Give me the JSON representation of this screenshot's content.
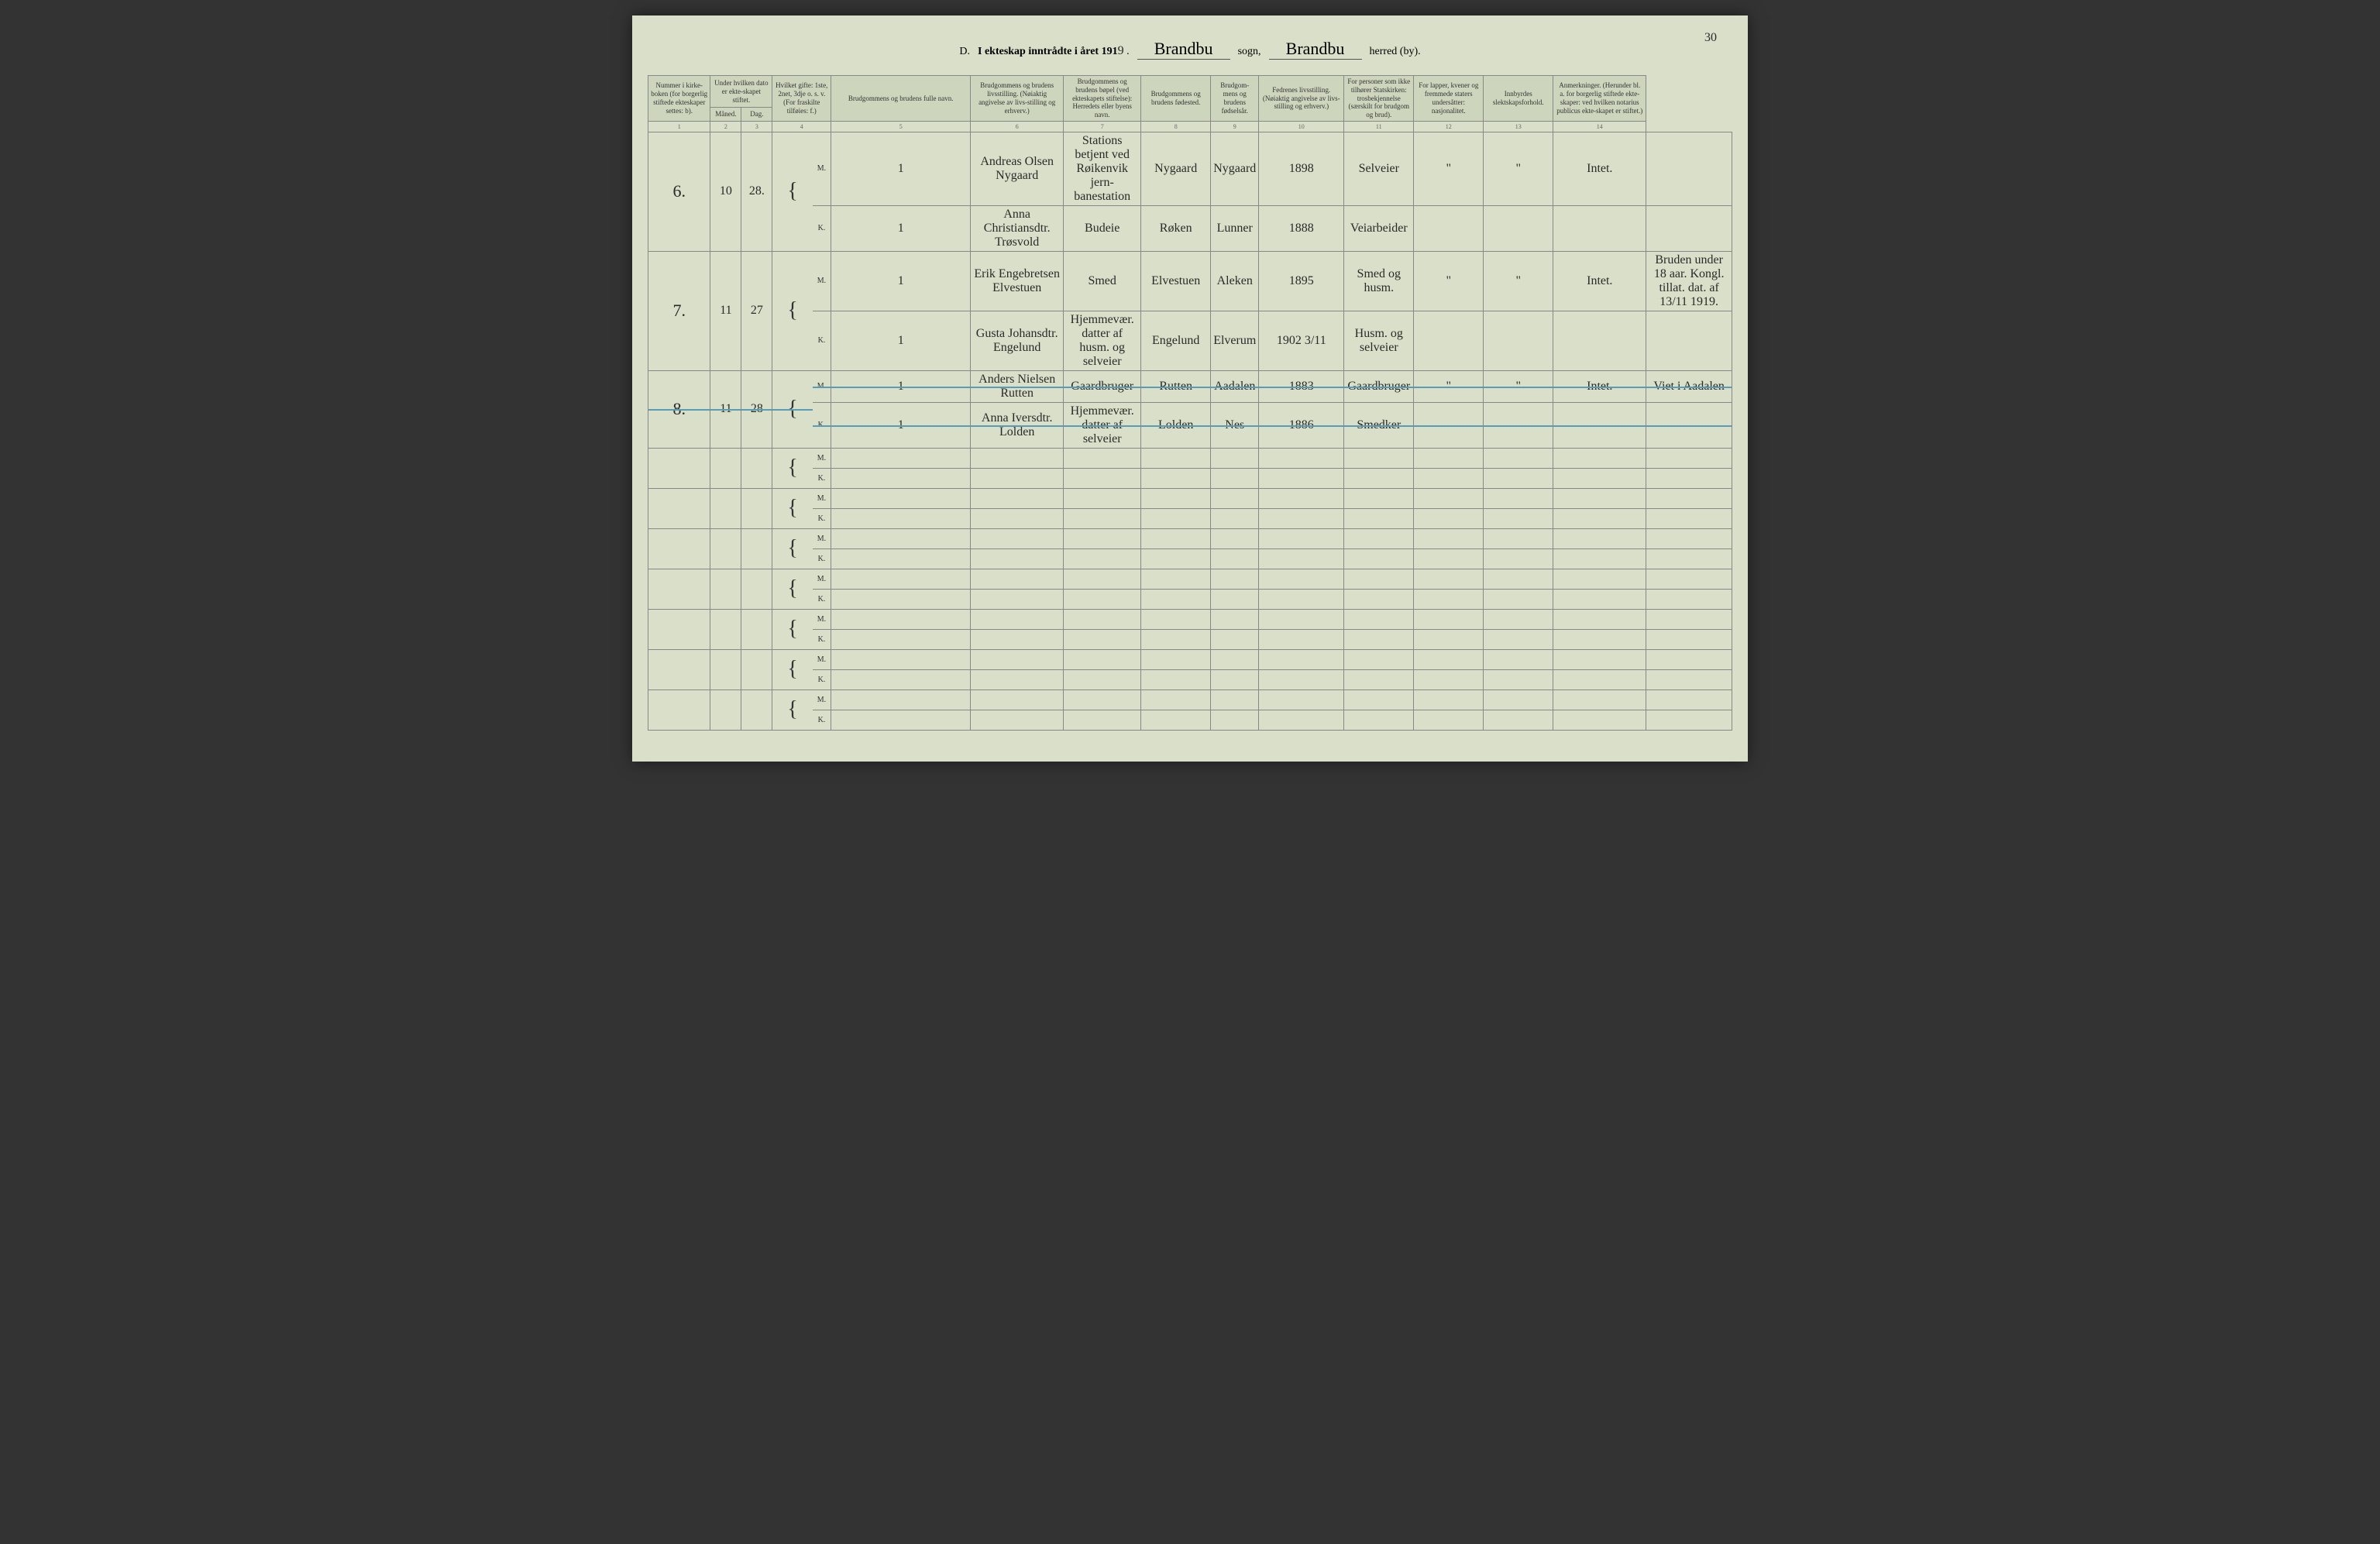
{
  "header": {
    "section_letter": "D.",
    "title_prefix": "I ekteskap inntrådte i året 191",
    "year_suffix": "9",
    "sogn_label": "sogn,",
    "sogn_value": "Brandbu",
    "herred_label": "herred (by).",
    "herred_value": "Brandbu",
    "page_number": "30"
  },
  "columns": [
    {
      "num": "1",
      "label": "Nummer i kirke-boken (for borgerlig stiftede ekteskaper settes: b)."
    },
    {
      "num": "2",
      "label": "Måned."
    },
    {
      "num": "3",
      "label": "Dag."
    },
    {
      "num": "",
      "label_top": "Under hvilken dato er ekte-skapet stiftet."
    },
    {
      "num": "4",
      "label": "Hvilket gifte: 1ste, 2net, 3dje o. s. v. (For fraskilte tilføies: f.)"
    },
    {
      "num": "5",
      "label": "Brudgommens og brudens fulle navn."
    },
    {
      "num": "6",
      "label": "Brudgommens og brudens livsstilling. (Nøiaktig angivelse av livs-stilling og erhverv.)"
    },
    {
      "num": "7",
      "label": "Brudgommens og brudens bøpel (ved ekteskapets stiftelse): Herredets eller byens navn."
    },
    {
      "num": "8",
      "label": "Brudgommens og brudens fødested."
    },
    {
      "num": "9",
      "label": "Brudgom-mens og brudens fødselsår."
    },
    {
      "num": "10",
      "label": "Fedrenes livsstilling. (Nøiaktig angivelse av livs-stilling og erhverv.)"
    },
    {
      "num": "11",
      "label": "For personer som ikke tilhører Statskirken: trosbekjennelse (særskilt for brudgom og brud)."
    },
    {
      "num": "12",
      "label": "For lapper, kvener og fremmede staters undersåtter: nasjonalitet."
    },
    {
      "num": "13",
      "label": "Innbyrdes slektskapsforhold."
    },
    {
      "num": "14",
      "label": "Anmerkninger. (Herunder bl. a. for borgerlig stiftede ekte-skaper: ved hvilken notarius publicus ekte-skapet er stiftet.)"
    }
  ],
  "entries": [
    {
      "num": "6.",
      "month": "10",
      "day": "28.",
      "m": {
        "gifte": "1",
        "name": "Andreas Olsen Nygaard",
        "livs": "Stations betjent ved Røikenvik jern-banestation",
        "bopel": "Nygaard",
        "fodested": "Nygaard",
        "aar": "1898",
        "fedre": "Selveier",
        "c11": "\"",
        "c12": "\"",
        "c13": "Intet.",
        "c14": ""
      },
      "k": {
        "gifte": "1",
        "name": "Anna Christiansdtr. Trøsvold",
        "livs": "Budeie",
        "bopel": "Røken",
        "fodested": "Lunner",
        "aar": "1888",
        "fedre": "Veiarbeider",
        "c11": "",
        "c12": "",
        "c13": "",
        "c14": ""
      }
    },
    {
      "num": "7.",
      "month": "11",
      "day": "27",
      "m": {
        "gifte": "1",
        "name": "Erik Engebretsen Elvestuen",
        "livs": "Smed",
        "bopel": "Elvestuen",
        "fodested": "Aleken",
        "aar": "1895",
        "fedre": "Smed og husm.",
        "c11": "\"",
        "c12": "\"",
        "c13": "Intet.",
        "c14": "Bruden under 18 aar. Kongl. tillat. dat. af 13/11 1919."
      },
      "k": {
        "gifte": "1",
        "name": "Gusta Johansdtr. Engelund",
        "livs": "Hjemmevær. datter af husm. og selveier",
        "bopel": "Engelund",
        "fodested": "Elverum",
        "aar": "1902 3/11",
        "fedre": "Husm. og selveier",
        "c11": "",
        "c12": "",
        "c13": "",
        "c14": ""
      }
    },
    {
      "num": "8.",
      "month": "11",
      "day": "28",
      "struck": true,
      "m": {
        "gifte": "1",
        "name": "Anders Nielsen Rutten",
        "livs": "Gaardbruger",
        "bopel": "Rutten",
        "fodested": "Aadalen",
        "aar": "1883",
        "fedre": "Gaardbruger",
        "c11": "\"",
        "c12": "\"",
        "c13": "Intet.",
        "c14": "Viet i Aadalen"
      },
      "k": {
        "gifte": "1",
        "name": "Anna Iversdtr. Lolden",
        "livs": "Hjemmevær. datter af selveier",
        "bopel": "Lolden",
        "fodested": "Nes",
        "aar": "1886",
        "fedre": "Smedker",
        "c11": "",
        "c12": "",
        "c13": "",
        "c14": ""
      }
    }
  ],
  "empty_row_count": 7,
  "mk_labels": {
    "m": "M.",
    "k": "K."
  }
}
